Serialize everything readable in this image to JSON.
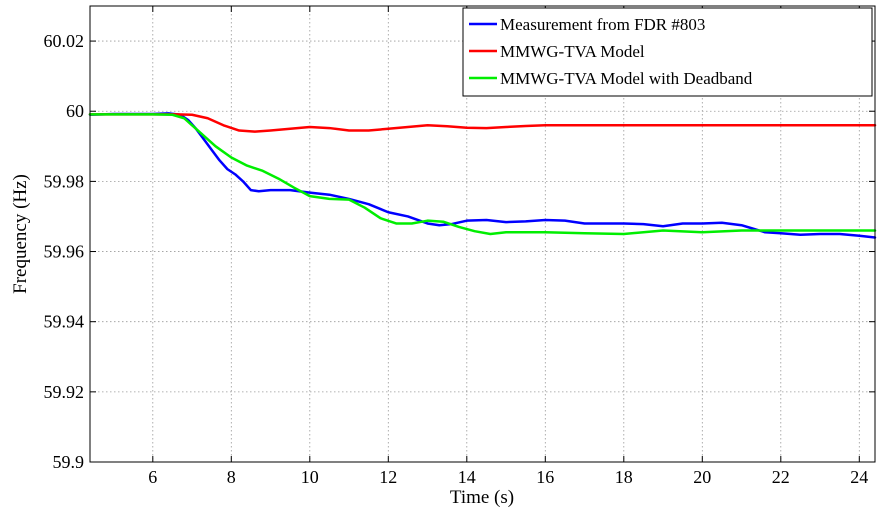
{
  "chart_data": {
    "type": "line",
    "title": "",
    "xlabel": "Time (s)",
    "ylabel": "Frequency (Hz)",
    "xlim": [
      4.4,
      24.4
    ],
    "ylim": [
      59.9,
      60.03
    ],
    "x_ticks": [
      6,
      8,
      10,
      12,
      14,
      16,
      18,
      20,
      22,
      24
    ],
    "x_tick_labels": [
      "6",
      "8",
      "10",
      "12",
      "14",
      "16",
      "18",
      "20",
      "22",
      "24"
    ],
    "y_ticks": [
      59.9,
      59.92,
      59.94,
      59.96,
      59.98,
      60.0,
      60.02
    ],
    "y_tick_labels": [
      "59.9",
      "59.92",
      "59.94",
      "59.96",
      "59.98",
      "60",
      "60.02"
    ],
    "grid": true,
    "legend_position": "top-right",
    "series": [
      {
        "name": "Measurement from FDR #803",
        "color": "#0000ff",
        "x": [
          4.4,
          5.0,
          5.5,
          6.0,
          6.4,
          6.7,
          6.9,
          7.1,
          7.3,
          7.5,
          7.7,
          7.9,
          8.1,
          8.3,
          8.5,
          8.7,
          9.0,
          9.5,
          10.0,
          10.5,
          11.0,
          11.5,
          12.0,
          12.5,
          13.0,
          13.3,
          13.6,
          14.0,
          14.5,
          15.0,
          15.5,
          16.0,
          16.5,
          17.0,
          17.5,
          18.0,
          18.5,
          19.0,
          19.5,
          20.0,
          20.5,
          21.0,
          21.3,
          21.6,
          22.0,
          22.5,
          23.0,
          23.5,
          24.0,
          24.4
        ],
        "y": [
          59.999,
          59.9992,
          59.9992,
          59.9992,
          59.9994,
          59.999,
          59.9975,
          59.995,
          59.992,
          59.989,
          59.986,
          59.9835,
          59.982,
          59.98,
          59.9775,
          59.9772,
          59.9775,
          59.9775,
          59.9768,
          59.9762,
          59.975,
          59.9735,
          59.9712,
          59.97,
          59.968,
          59.9675,
          59.9678,
          59.9688,
          59.969,
          59.9684,
          59.9686,
          59.969,
          59.9688,
          59.968,
          59.968,
          59.968,
          59.9678,
          59.9672,
          59.968,
          59.968,
          59.9682,
          59.9675,
          59.9665,
          59.9655,
          59.9652,
          59.9648,
          59.965,
          59.965,
          59.9645,
          59.964
        ]
      },
      {
        "name": "MMWG-TVA Model",
        "color": "#ff0000",
        "x": [
          4.4,
          5.0,
          6.0,
          6.6,
          7.0,
          7.4,
          7.8,
          8.2,
          8.6,
          9.0,
          9.5,
          10.0,
          10.5,
          11.0,
          11.5,
          12.0,
          12.5,
          13.0,
          13.5,
          14.0,
          14.5,
          15.0,
          15.5,
          16.0,
          17.0,
          18.0,
          19.0,
          20.0,
          21.0,
          22.0,
          23.0,
          24.0,
          24.4
        ],
        "y": [
          59.9991,
          59.9991,
          59.9991,
          59.9991,
          59.999,
          59.998,
          59.996,
          59.9945,
          59.9942,
          59.9945,
          59.995,
          59.9955,
          59.9952,
          59.9945,
          59.9945,
          59.995,
          59.9955,
          59.996,
          59.9957,
          59.9953,
          59.9952,
          59.9955,
          59.9958,
          59.996,
          59.996,
          59.996,
          59.996,
          59.996,
          59.996,
          59.996,
          59.996,
          59.996,
          59.996
        ]
      },
      {
        "name": "MMWG-TVA Model with Deadband",
        "color": "#00ee00",
        "x": [
          4.4,
          5.0,
          6.0,
          6.5,
          6.8,
          7.0,
          7.3,
          7.6,
          8.0,
          8.4,
          8.8,
          9.2,
          9.6,
          10.0,
          10.5,
          11.0,
          11.4,
          11.8,
          12.2,
          12.6,
          13.0,
          13.4,
          13.8,
          14.2,
          14.6,
          15.0,
          16.0,
          17.0,
          18.0,
          19.0,
          20.0,
          21.0,
          22.0,
          23.0,
          24.0,
          24.4
        ],
        "y": [
          59.9991,
          59.9991,
          59.9991,
          59.999,
          59.998,
          59.996,
          59.993,
          59.99,
          59.9868,
          59.9845,
          59.983,
          59.9808,
          59.9782,
          59.9758,
          59.975,
          59.9748,
          59.9725,
          59.9695,
          59.968,
          59.968,
          59.9688,
          59.9685,
          59.967,
          59.9658,
          59.965,
          59.9655,
          59.9655,
          59.9652,
          59.965,
          59.966,
          59.9655,
          59.966,
          59.966,
          59.966,
          59.966,
          59.966
        ]
      }
    ]
  }
}
